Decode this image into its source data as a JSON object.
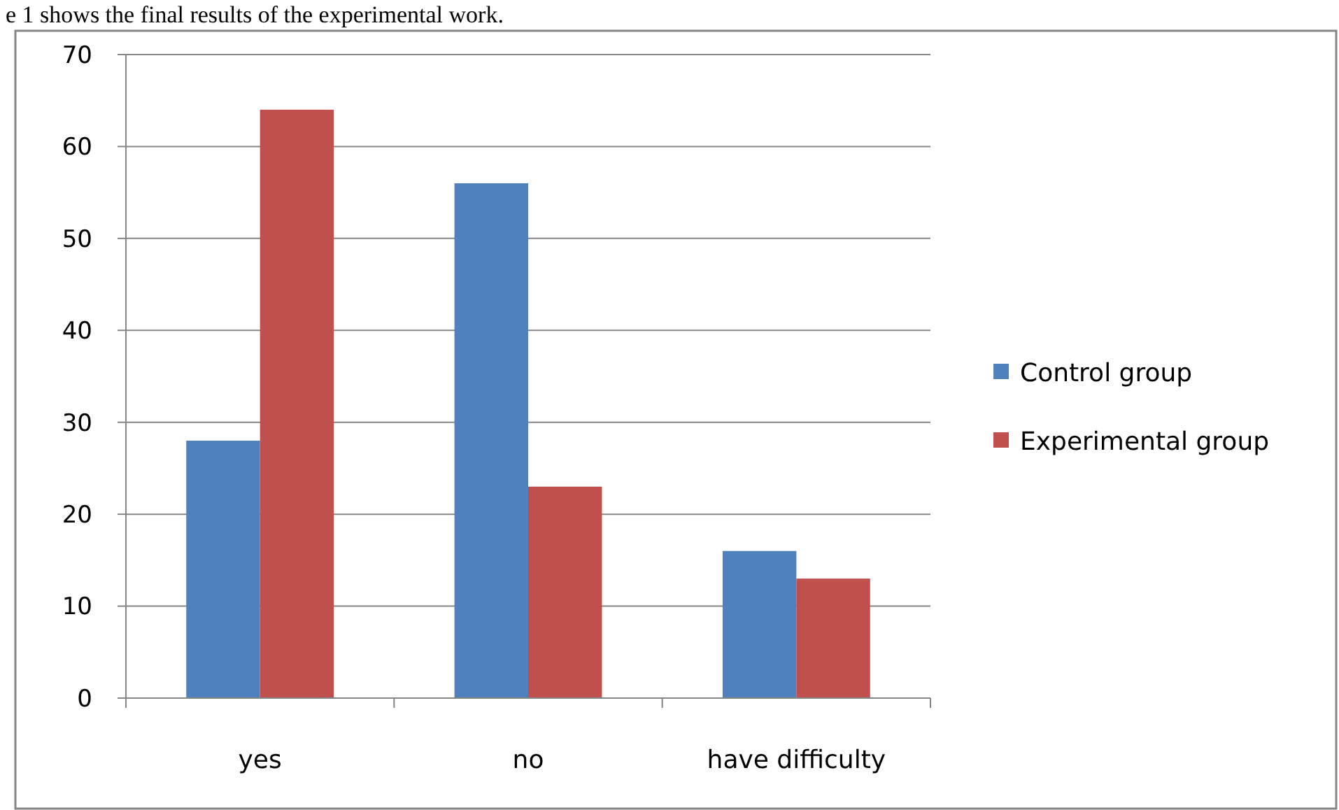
{
  "chart_data": {
    "type": "bar",
    "annotations": [
      "e 1 shows the final results of the experimental work."
    ],
    "categories": [
      "yes",
      "no",
      "have difficulty"
    ],
    "series": [
      {
        "name": "Control group",
        "color": "#4f81bd",
        "values": [
          28,
          56,
          16
        ]
      },
      {
        "name": "Experimental group",
        "color": "#c0504d",
        "values": [
          64,
          23,
          13
        ]
      }
    ],
    "ylim": [
      0,
      70
    ],
    "yticks": [
      0,
      10,
      20,
      30,
      40,
      50,
      60,
      70
    ],
    "grid": "y",
    "legend": "right"
  }
}
